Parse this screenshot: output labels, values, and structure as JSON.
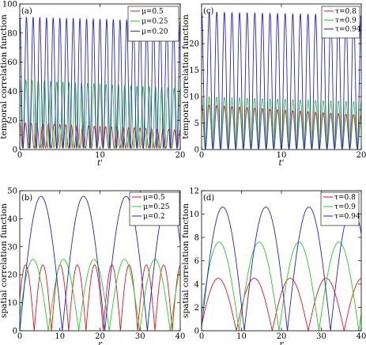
{
  "chart_data": [
    {
      "type": "line",
      "panel_tag": "(a)",
      "ylabel": "temporal correlation function",
      "xlabel": "t'",
      "xlim": [
        0,
        20
      ],
      "ylim": [
        0,
        100
      ],
      "xticks": [
        0,
        10,
        20
      ],
      "yticks": [
        0,
        10,
        20,
        30,
        40,
        50,
        60,
        70,
        80,
        90,
        100
      ],
      "ytick_labels": [
        "0",
        "",
        "20",
        "",
        "40",
        "",
        "60",
        "",
        "80",
        "",
        "100"
      ],
      "legend_position": "top-right",
      "grid": false,
      "series": [
        {
          "name": "μ=0.5",
          "color": "#e8141c",
          "kind": "cos2",
          "period": 0.714,
          "max_start": 18.5,
          "max_end": 13.5,
          "min": 1.0
        },
        {
          "name": "μ=0.25",
          "color": "#22d022",
          "kind": "cos2",
          "period": 0.769,
          "max_start": 48.0,
          "max_end": 42.0,
          "min": 1.0
        },
        {
          "name": "μ=0.20",
          "color": "#2222cc",
          "kind": "cos2",
          "period": 0.833,
          "max_start": 91.0,
          "max_end": 88.0,
          "min": 1.0
        }
      ]
    },
    {
      "type": "line",
      "panel_tag": "(c)",
      "ylabel": "temporal correlation function",
      "xlabel": "t'",
      "xlim": [
        0,
        20
      ],
      "ylim": [
        0,
        22
      ],
      "xticks": [
        0,
        10,
        20
      ],
      "yticks": [
        0,
        2,
        4,
        6,
        8,
        10,
        12,
        14,
        16,
        18,
        20
      ],
      "ytick_labels": [
        "0",
        "",
        "5",
        "",
        "10",
        "",
        "15",
        "",
        "20",
        "",
        ""
      ],
      "legend_position": "top-right",
      "grid": false,
      "series": [
        {
          "name": "τ=0.8",
          "color": "#e8141c",
          "kind": "cos2",
          "period": 0.952,
          "max_start": 6.8,
          "max_end": 5.2,
          "min": 0.1
        },
        {
          "name": "τ=0.9",
          "color": "#22d022",
          "kind": "cos2",
          "period": 0.952,
          "max_start": 8.0,
          "max_end": 7.2,
          "min": 0.1
        },
        {
          "name": "τ=0.94",
          "color": "#2222cc",
          "kind": "cos2",
          "period": 0.952,
          "max_start": 20.8,
          "max_end": 20.3,
          "min": 0.1
        }
      ]
    },
    {
      "type": "line",
      "panel_tag": "(b)",
      "ylabel": "spatial correlation function",
      "xlabel": "r",
      "xlim": [
        0,
        40
      ],
      "ylim": [
        0,
        50
      ],
      "xticks": [
        0,
        10,
        20,
        30,
        40
      ],
      "yticks": [
        0,
        10,
        20,
        30,
        40,
        50
      ],
      "ytick_labels": [
        "0",
        "10",
        "20",
        "30",
        "40",
        "50"
      ],
      "legend_position": "top-right",
      "grid": false,
      "series": [
        {
          "name": "μ=0.5",
          "color": "#e8141c",
          "kind": "abs",
          "period": 4.3,
          "phase": 0.7,
          "max": 23.5,
          "min": 0
        },
        {
          "name": "μ=0.25",
          "color": "#22d022",
          "kind": "abs",
          "period": 7.6,
          "phase": 0.5,
          "max": 25.5,
          "min": 0
        },
        {
          "name": "μ=0.2",
          "color": "#2222cc",
          "kind": "abs",
          "period": 10.6,
          "phase": 0.0,
          "max": 48.0,
          "min": 0
        }
      ]
    },
    {
      "type": "line",
      "panel_tag": "(d)",
      "ylabel": "spatial correlation function",
      "xlabel": "r",
      "xlim": [
        0,
        40
      ],
      "ylim": [
        0,
        12
      ],
      "xticks": [
        0,
        10,
        20,
        30,
        40
      ],
      "yticks": [
        0,
        2,
        4,
        6,
        8,
        10,
        12
      ],
      "ytick_labels": [
        "0",
        "2",
        "4",
        "6",
        "8",
        "10",
        "12"
      ],
      "legend_position": "top-right",
      "grid": false,
      "series": [
        {
          "name": "τ=0.8",
          "color": "#e8141c",
          "kind": "abs",
          "period": 9.0,
          "phase": 0.3,
          "max": 4.5,
          "min": 0
        },
        {
          "name": "τ=0.9",
          "color": "#22d022",
          "kind": "abs",
          "period": 10.0,
          "phase": 0.6,
          "max": 7.6,
          "min": 0
        },
        {
          "name": "τ=0.94",
          "color": "#2222cc",
          "kind": "abs",
          "period": 10.8,
          "phase": 0.1,
          "max": 10.6,
          "min": 0
        }
      ]
    }
  ]
}
